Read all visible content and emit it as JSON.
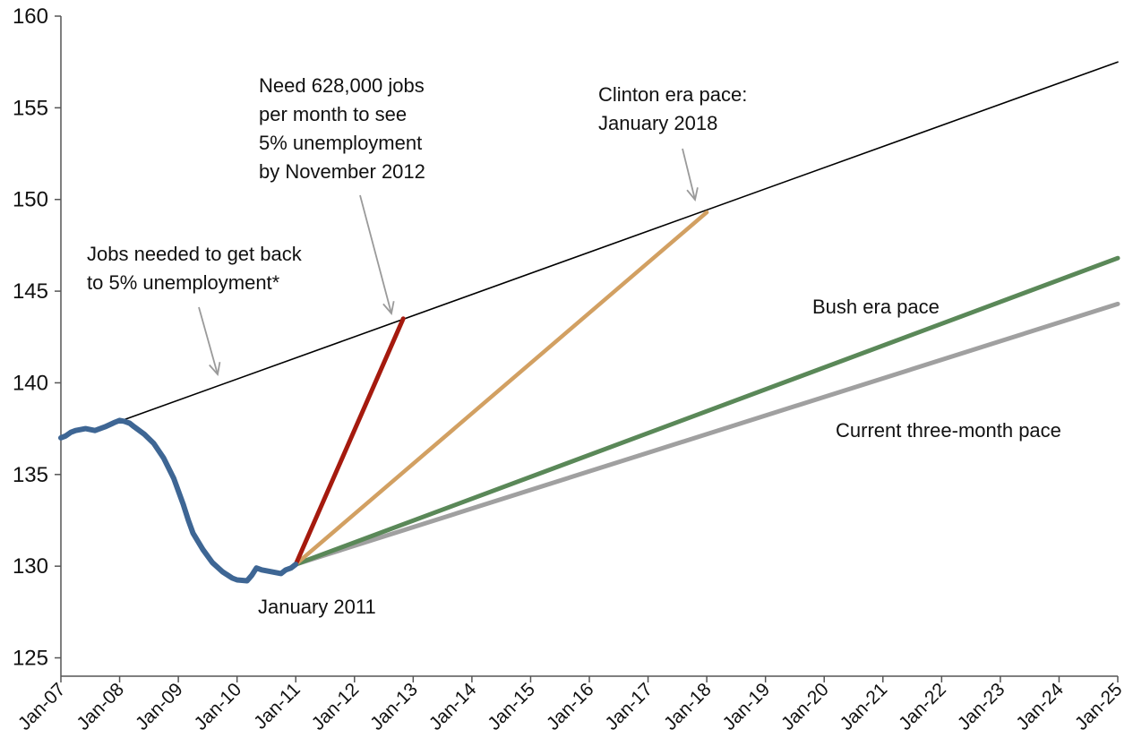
{
  "chart_data": {
    "type": "line",
    "title": "",
    "xlabel": "",
    "ylabel": "",
    "ylim": [
      124,
      160
    ],
    "y_ticks": [
      125,
      130,
      135,
      140,
      145,
      150,
      155,
      160
    ],
    "x_ticks": [
      "Jan-07",
      "Jan-08",
      "Jan-09",
      "Jan-10",
      "Jan-11",
      "Jan-12",
      "Jan-13",
      "Jan-14",
      "Jan-15",
      "Jan-16",
      "Jan-17",
      "Jan-18",
      "Jan-19",
      "Jan-20",
      "Jan-21",
      "Jan-22",
      "Jan-23",
      "Jan-24",
      "Jan-25"
    ],
    "grid": false,
    "legend": "none",
    "series": [
      {
        "key": "actual",
        "color": "#3e6694",
        "points": [
          [
            2007.0,
            137.0
          ],
          [
            2007.08,
            137.1
          ],
          [
            2007.17,
            137.3
          ],
          [
            2007.25,
            137.4
          ],
          [
            2007.42,
            137.5
          ],
          [
            2007.58,
            137.4
          ],
          [
            2007.75,
            137.6
          ],
          [
            2007.92,
            137.85
          ],
          [
            2008.0,
            137.95
          ],
          [
            2008.08,
            137.9
          ],
          [
            2008.17,
            137.8
          ],
          [
            2008.25,
            137.6
          ],
          [
            2008.42,
            137.2
          ],
          [
            2008.58,
            136.7
          ],
          [
            2008.75,
            135.9
          ],
          [
            2008.92,
            134.8
          ],
          [
            2009.08,
            133.4
          ],
          [
            2009.17,
            132.5
          ],
          [
            2009.25,
            131.8
          ],
          [
            2009.42,
            130.9
          ],
          [
            2009.58,
            130.2
          ],
          [
            2009.75,
            129.7
          ],
          [
            2009.92,
            129.35
          ],
          [
            2010.0,
            129.25
          ],
          [
            2010.17,
            129.2
          ],
          [
            2010.25,
            129.5
          ],
          [
            2010.33,
            129.9
          ],
          [
            2010.42,
            129.8
          ],
          [
            2010.58,
            129.7
          ],
          [
            2010.75,
            129.6
          ],
          [
            2010.83,
            129.8
          ],
          [
            2010.92,
            129.9
          ],
          [
            2011.0,
            130.1
          ]
        ]
      },
      {
        "key": "target",
        "color": "#000000",
        "points": [
          [
            2008.0,
            137.9
          ],
          [
            2025.0,
            157.5
          ]
        ]
      },
      {
        "key": "needed-628k",
        "color": "#a51a0e",
        "points": [
          [
            2011.0,
            130.1
          ],
          [
            2012.83,
            143.5
          ]
        ]
      },
      {
        "key": "clinton",
        "color": "#d2a062",
        "points": [
          [
            2011.0,
            130.1
          ],
          [
            2018.0,
            149.3
          ]
        ]
      },
      {
        "key": "bush",
        "color": "#5a8858",
        "points": [
          [
            2011.0,
            130.1
          ],
          [
            2025.0,
            146.8
          ]
        ]
      },
      {
        "key": "three-month",
        "color": "#a0a0a0",
        "points": [
          [
            2011.0,
            130.1
          ],
          [
            2025.0,
            144.3
          ]
        ]
      }
    ],
    "annotations": [
      {
        "key": "jobs-needed",
        "lines": [
          "Jobs needed to get back",
          "to 5% unemployment*"
        ]
      },
      {
        "key": "need-628k",
        "lines": [
          "Need 628,000 jobs",
          "per month to see",
          "5% unemployment",
          "by November 2012"
        ]
      },
      {
        "key": "clinton-pace",
        "lines": [
          "Clinton era pace:",
          "January 2018"
        ]
      },
      {
        "key": "bush-pace",
        "lines": [
          "Bush era pace"
        ]
      },
      {
        "key": "current-pace",
        "lines": [
          "Current three-month pace"
        ]
      },
      {
        "key": "jan-2011",
        "lines": [
          "January 2011"
        ]
      }
    ]
  }
}
